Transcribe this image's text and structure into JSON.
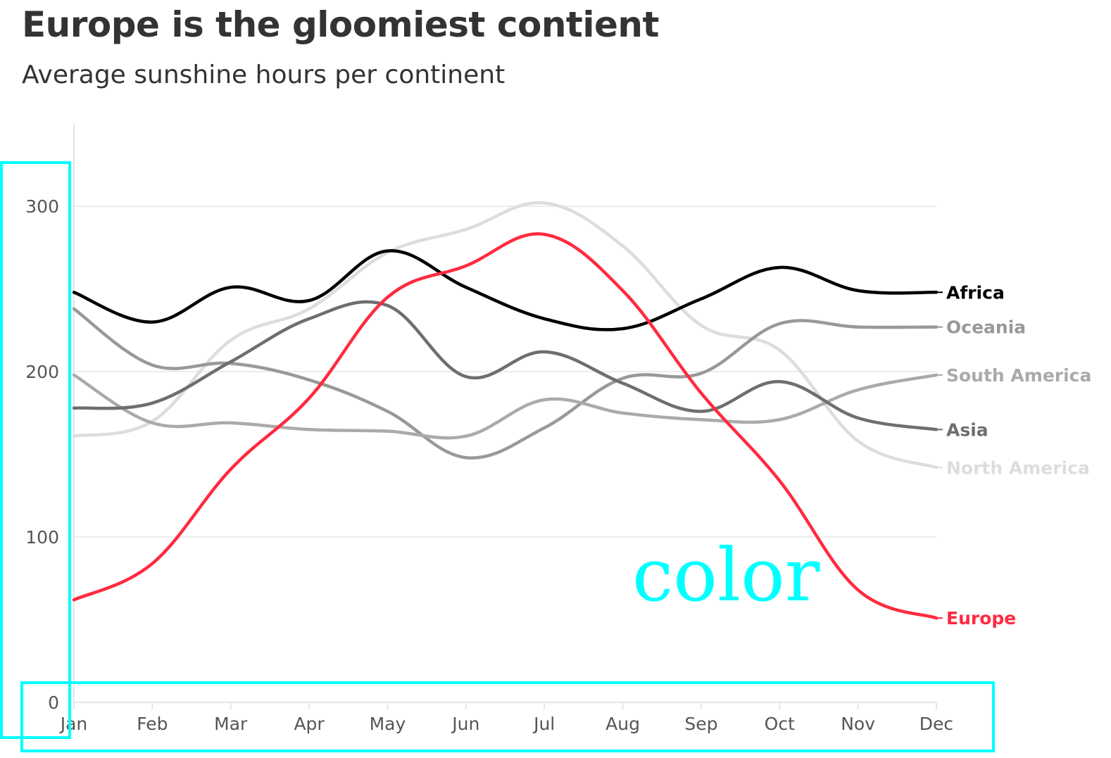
{
  "header": {
    "title": "Europe is the gloomiest contient",
    "subtitle": "Average sunshine hours per continent"
  },
  "annotation": {
    "text": "color",
    "color": "#00FFFF"
  },
  "chart_data": {
    "type": "line",
    "title": "Europe is the gloomiest contient",
    "subtitle": "Average sunshine hours per continent",
    "xlabel": "",
    "ylabel": "",
    "categories": [
      "Jan",
      "Feb",
      "Mar",
      "Apr",
      "May",
      "Jun",
      "Jul",
      "Aug",
      "Sep",
      "Oct",
      "Nov",
      "Dec"
    ],
    "ylim": [
      0,
      350
    ],
    "yticks": [
      0,
      100,
      200,
      300
    ],
    "grid": true,
    "legend": "direct labels at line ends (right)",
    "series": [
      {
        "name": "North America",
        "color": "#DDDDDD",
        "values": [
          161,
          170,
          219,
          238,
          272,
          286,
          302,
          276,
          228,
          213,
          158,
          142
        ]
      },
      {
        "name": "Oceania",
        "color": "#999999",
        "values": [
          238,
          204,
          205,
          195,
          176,
          148,
          166,
          196,
          199,
          229,
          227,
          227
        ]
      },
      {
        "name": "South America",
        "color": "#AAAAAA",
        "values": [
          198,
          169,
          169,
          165,
          164,
          161,
          183,
          175,
          171,
          171,
          189,
          198
        ]
      },
      {
        "name": "Asia",
        "color": "#6E6E6E",
        "values": [
          178,
          181,
          206,
          232,
          240,
          197,
          212,
          193,
          176,
          194,
          172,
          165
        ]
      },
      {
        "name": "Africa",
        "color": "#000000",
        "values": [
          248,
          230,
          251,
          243,
          273,
          251,
          232,
          226,
          244,
          263,
          249,
          248
        ]
      },
      {
        "name": "Europe",
        "color": "#FF2A40",
        "values": [
          62,
          84,
          141,
          184,
          245,
          264,
          283,
          249,
          187,
          134,
          68,
          51
        ]
      }
    ]
  }
}
